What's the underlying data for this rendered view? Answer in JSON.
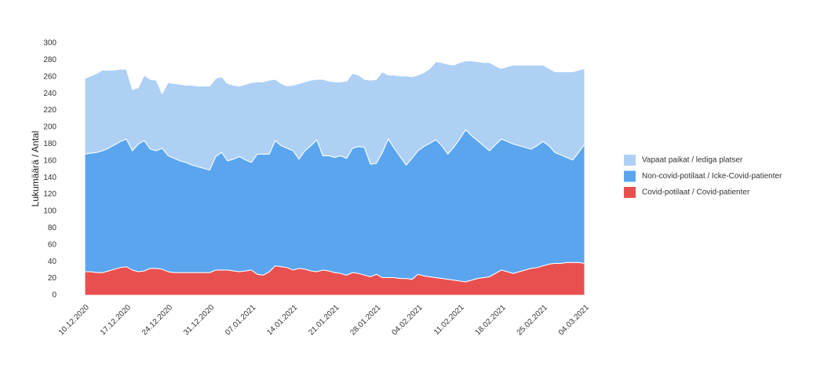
{
  "chart_data": {
    "type": "stacked_area",
    "ylabel": "Lukumäärä / Antal",
    "categories": [
      "10.12.2020",
      null,
      null,
      null,
      null,
      null,
      null,
      "17.12.2020",
      null,
      null,
      null,
      null,
      null,
      null,
      "24.12.2020",
      null,
      null,
      null,
      null,
      null,
      null,
      "31.12.2020",
      null,
      null,
      null,
      null,
      null,
      null,
      "07.01.2021",
      null,
      null,
      null,
      null,
      null,
      null,
      "14.01.2021",
      null,
      null,
      null,
      null,
      null,
      null,
      "21.01.2021",
      null,
      null,
      null,
      null,
      null,
      null,
      "28.01.2021",
      null,
      null,
      null,
      null,
      null,
      null,
      "04.02.2021",
      null,
      null,
      null,
      null,
      null,
      null,
      "11.02.2021",
      null,
      null,
      null,
      null,
      null,
      null,
      "18.02.2021",
      null,
      null,
      null,
      null,
      null,
      null,
      "25.02.2021",
      null,
      null,
      null,
      null,
      null,
      null,
      "04.03.2021"
    ],
    "series": [
      {
        "name": "Covid-potilaat / Covid-patienter",
        "color": "#e8504f",
        "values": [
          28,
          28,
          27,
          27,
          29,
          31,
          33,
          34,
          30,
          28,
          29,
          32,
          32,
          31,
          28,
          27,
          27,
          27,
          27,
          27,
          27,
          27,
          30,
          30,
          30,
          29,
          28,
          29,
          30,
          25,
          24,
          28,
          35,
          34,
          33,
          30,
          32,
          31,
          29,
          28,
          30,
          29,
          27,
          26,
          24,
          27,
          26,
          24,
          22,
          25,
          21,
          21,
          21,
          20,
          20,
          19,
          25,
          23,
          22,
          21,
          20,
          19,
          18,
          17,
          16,
          18,
          20,
          21,
          22,
          26,
          30,
          28,
          26,
          28,
          30,
          32,
          33,
          35,
          37,
          38,
          38,
          39,
          39,
          39,
          38
        ]
      },
      {
        "name": "Non-covid-potilaat / Icke-Covid-patienter",
        "color": "#5aa5ee",
        "values": [
          140,
          141,
          143,
          145,
          146,
          148,
          150,
          152,
          142,
          152,
          155,
          142,
          140,
          144,
          138,
          136,
          133,
          131,
          128,
          126,
          124,
          122,
          135,
          140,
          130,
          133,
          137,
          132,
          128,
          143,
          144,
          140,
          149,
          144,
          142,
          142,
          130,
          141,
          149,
          157,
          136,
          137,
          137,
          140,
          139,
          148,
          151,
          152,
          134,
          132,
          149,
          165,
          154,
          145,
          135,
          144,
          147,
          154,
          159,
          164,
          158,
          149,
          158,
          169,
          181,
          172,
          164,
          157,
          150,
          153,
          156,
          155,
          154,
          150,
          146,
          142,
          145,
          148,
          141,
          132,
          129,
          125,
          122,
          131,
          142
        ]
      },
      {
        "name": "Vapaat paikat / lediga platser",
        "color": "#aed0f5",
        "values": [
          90,
          92,
          94,
          96,
          93,
          89,
          86,
          83,
          73,
          67,
          78,
          83,
          84,
          65,
          87,
          89,
          91,
          92,
          95,
          96,
          98,
          100,
          93,
          90,
          92,
          88,
          84,
          90,
          95,
          86,
          86,
          88,
          73,
          74,
          74,
          78,
          90,
          82,
          78,
          72,
          91,
          89,
          90,
          88,
          92,
          89,
          85,
          81,
          100,
          100,
          96,
          76,
          87,
          96,
          106,
          97,
          90,
          88,
          89,
          93,
          99,
          107,
          98,
          91,
          82,
          89,
          94,
          99,
          105,
          94,
          84,
          89,
          94,
          96,
          98,
          100,
          96,
          91,
          92,
          96,
          99,
          102,
          105,
          98,
          90
        ]
      }
    ],
    "ylim": [
      0,
      300
    ],
    "yticks": [
      0,
      20,
      40,
      60,
      80,
      100,
      120,
      140,
      160,
      180,
      200,
      220,
      240,
      260,
      280,
      300
    ],
    "grid": false,
    "legend": "right"
  }
}
